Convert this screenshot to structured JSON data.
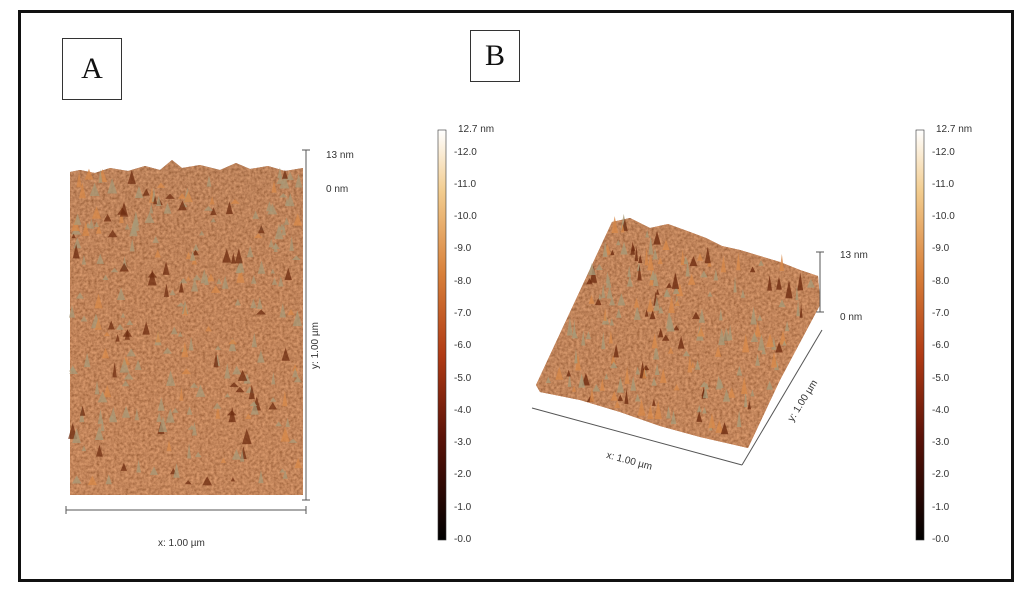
{
  "panels": [
    {
      "label": "A",
      "z_max": "13 nm",
      "z_min": "0 nm",
      "x_axis": "x: 1.00 µm",
      "y_axis": "y: 1.00 µm"
    },
    {
      "label": "B",
      "z_max": "13 nm",
      "z_min": "0 nm",
      "x_axis": "x: 1.00 µm",
      "y_axis": "y: 1.00 µm"
    }
  ],
  "colorbar": {
    "max_label": "12.7 nm",
    "ticks": [
      "12.0",
      "11.0",
      "10.0",
      "9.0",
      "8.0",
      "7.0",
      "6.0",
      "5.0",
      "4.0",
      "3.0",
      "2.0",
      "1.0",
      "0.0"
    ]
  },
  "colors": {
    "surface_dark": "#5a1e08",
    "surface_mid": "#b4501e",
    "surface_light": "#e8a060",
    "peak": "#a89a78",
    "frame": "#111111"
  }
}
